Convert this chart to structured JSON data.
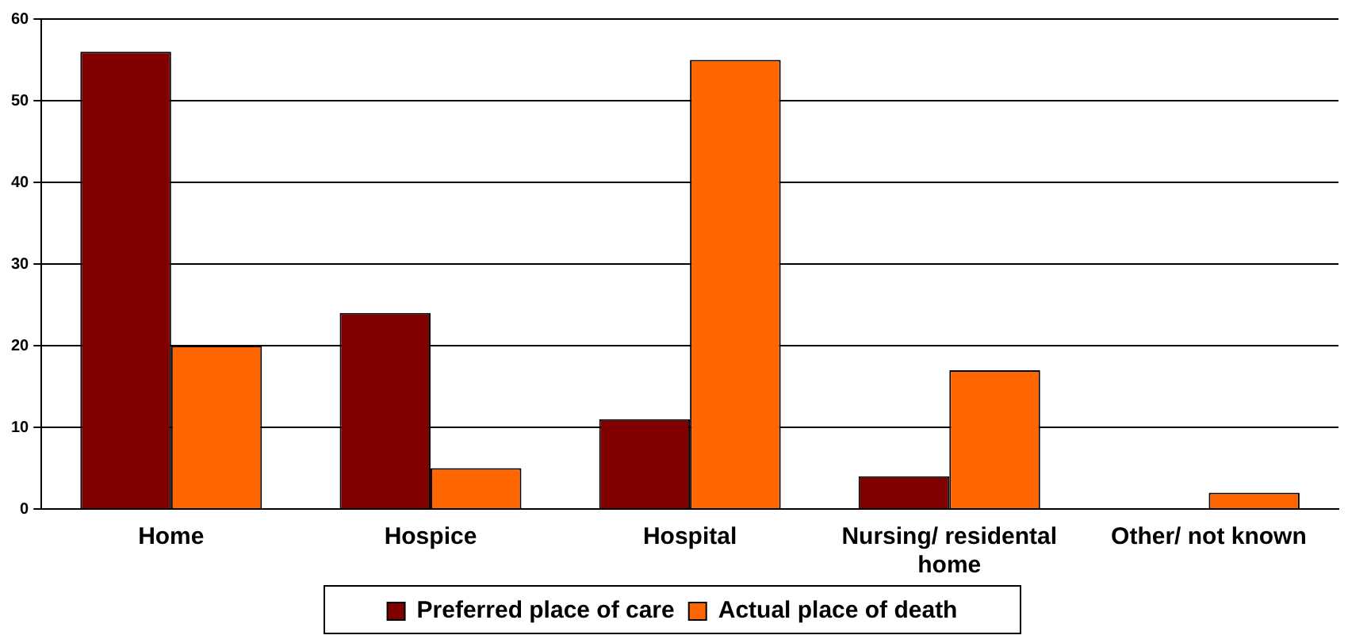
{
  "chart_data": {
    "type": "bar",
    "categories": [
      "Home",
      "Hospice",
      "Hospital",
      "Nursing/ residental home",
      "Other/ not known"
    ],
    "series": [
      {
        "name": "Preferred place of care",
        "color": "#800000",
        "values": [
          56,
          24,
          11,
          4,
          0
        ]
      },
      {
        "name": "Actual place of death",
        "color": "#ff6600",
        "values": [
          20,
          5,
          55,
          17,
          2
        ]
      }
    ],
    "ylim": [
      0,
      60
    ],
    "yticks": [
      0,
      10,
      20,
      30,
      40,
      50,
      60
    ],
    "grid": "y",
    "legend": "bottom"
  }
}
